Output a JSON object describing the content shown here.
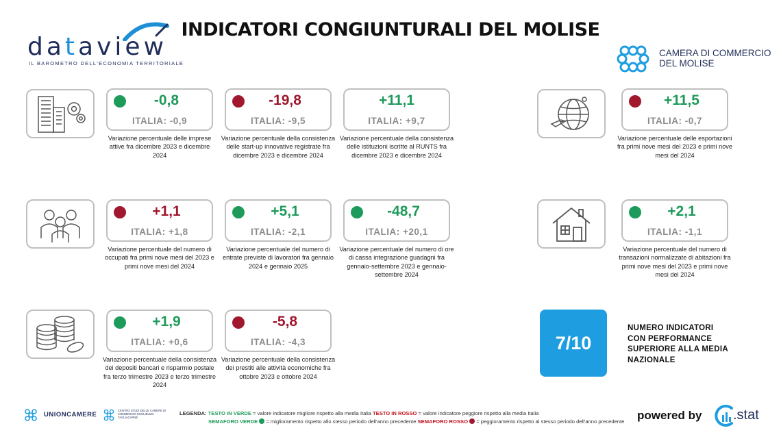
{
  "header": {
    "title": "INDICATORI CONGIUNTURALI DEL MOLISE",
    "logo_left": {
      "word_a": "da",
      "word_t": "t",
      "word_b": "aview",
      "tagline": "IL BAROMETRO DELL'ECONOMIA TERRITORIALE"
    },
    "logo_right": {
      "line1": "CAMERA DI COMMERCIO",
      "line2": "DEL MOLISE"
    }
  },
  "colors": {
    "green": "#1e9a5a",
    "red": "#a0172e",
    "score_bg": "#1e9ee0",
    "border": "#bfbfbf"
  },
  "icons": [
    "office-buildings-gears-icon",
    "globe-plane-icon",
    "people-group-icon",
    "house-icon",
    "coins-stack-icon"
  ],
  "indicators": [
    {
      "value": "-0,8",
      "italia": "ITALIA: -0,9",
      "value_color": "green",
      "dot": "green",
      "desc": "Variazione percentuale delle imprese attive fra dicembre 2023 e dicembre 2024"
    },
    {
      "value": "-19,8",
      "italia": "ITALIA: -9,5",
      "value_color": "red",
      "dot": "red",
      "desc": "Variazione percentuale della consistenza delle start-up innovative registrate fra dicembre 2023 e dicembre 2024"
    },
    {
      "value": "+11,1",
      "italia": "ITALIA: +9,7",
      "value_color": "green",
      "dot": "none",
      "desc": "Variazione percentuale della consistenza delle istituzioni iscritte al RUNTS fra dicembre 2023 e dicembre 2024"
    },
    {
      "value": "+11,5",
      "italia": "ITALIA: -0,7",
      "value_color": "green",
      "dot": "red",
      "desc": "Variazione percentuale delle esportazioni fra primi nove mesi del 2023 e primi nove mesi del 2024"
    },
    {
      "value": "+1,1",
      "italia": "ITALIA: +1,8",
      "value_color": "red",
      "dot": "red",
      "desc": "Variazione percentuale del numero di occupati fra primi nove mesi del 2023 e primi nove mesi del 2024"
    },
    {
      "value": "+5,1",
      "italia": "ITALIA: -2,1",
      "value_color": "green",
      "dot": "green",
      "desc": "Variazione percentuale del numero di entrate previste di lavoratori fra gennaio 2024 e gennaio 2025"
    },
    {
      "value": "-48,7",
      "italia": "ITALIA: +20,1",
      "value_color": "green",
      "dot": "green",
      "desc": "Variazione percentuale del numero di ore di cassa integrazione guadagni fra gennaio-settembre 2023 e gennaio-settembre 2024"
    },
    {
      "value": "+2,1",
      "italia": "ITALIA: -1,1",
      "value_color": "green",
      "dot": "green",
      "desc": "Variazione percentuale del numero di transazioni normalizzate di abitazioni fra primi nove mesi del 2023 e primi nove mesi del 2024"
    },
    {
      "value": "+1,9",
      "italia": "ITALIA: +0,6",
      "value_color": "green",
      "dot": "green",
      "desc": "Variazione percentuale della consistenza dei depositi bancari e risparmio postale fra terzo trimestre 2023 e terzo trimestre 2024"
    },
    {
      "value": "-5,8",
      "italia": "ITALIA: -4,3",
      "value_color": "red",
      "dot": "red",
      "desc": "Variazione percentuale della consistenza dei prestiti alle attività economiche fra ottobre 2023 e ottobre 2024"
    }
  ],
  "summary": {
    "score": "7/10",
    "label": "NUMERO INDICATORI CON PERFORMANCE SUPERIORE ALLA MEDIA NAZIONALE"
  },
  "footer": {
    "unioncamere": "UNIONCAMERE",
    "centro_studi": "CENTRO STUDI DELLE CAMERE DI COMMERCIO GUGLIELMO TAGLIACARNE",
    "legend_label": "LEGENDA:",
    "testo_verde": "TESTO IN VERDE",
    "testo_verde_desc": " = valore indicatore migliore rispetto alla media Italia ",
    "testo_rosso": "TESTO IN ROSSO",
    "testo_rosso_desc": " = valore indicatore peggiore rispetto alla media Italia",
    "semaforo_verde": "SEMAFORO VERDE",
    "semaforo_verde_desc": " = miglioramento rispetto allo stesso periodo dell'anno precedente ",
    "semaforo_rosso": "SEMAFORO ROSSO",
    "semaforo_rosso_desc": " = peggioramento rispetto al stesso periodo dell'anno precedente",
    "powered_by": "powered by",
    "stat_brand": ".stat"
  }
}
